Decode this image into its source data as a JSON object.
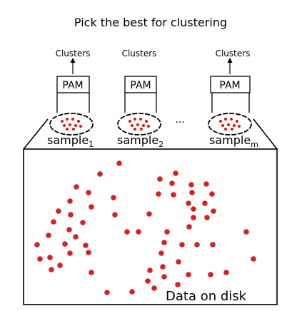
{
  "title": "Pick the best for clustering",
  "clusters_label": "Clusters",
  "pam_label": "PAM",
  "ellipsis": "···",
  "samples": [
    {
      "base": "sample",
      "sub": "1"
    },
    {
      "base": "sample",
      "sub": "2"
    },
    {
      "base": "sample",
      "sub": "m"
    }
  ],
  "data_label": "Data on disk",
  "colors": {
    "dot": "#d91f1f",
    "line": "#000000"
  }
}
